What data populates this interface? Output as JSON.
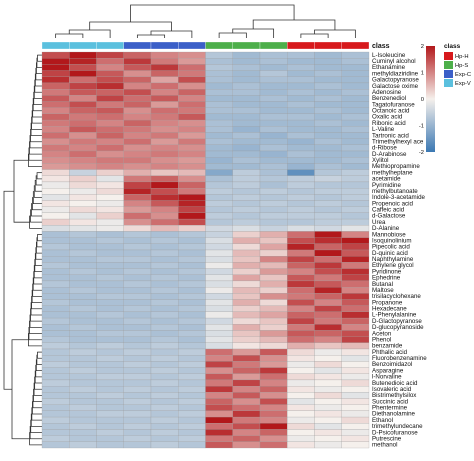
{
  "chart_data": {
    "type": "heatmap",
    "title": "",
    "annotation_title": "class",
    "classes": [
      {
        "name": "Hp-H",
        "color": "#d7191c"
      },
      {
        "name": "Hp-S",
        "color": "#4daf4a"
      },
      {
        "name": "Exp-C",
        "color": "#3b5fc8"
      },
      {
        "name": "Exp-V",
        "color": "#5bc0de"
      }
    ],
    "column_classes": [
      "Exp-V",
      "Exp-V",
      "Exp-V",
      "Exp-C",
      "Exp-C",
      "Exp-C",
      "Hp-S",
      "Hp-S",
      "Hp-S",
      "Hp-H",
      "Hp-H",
      "Hp-H"
    ],
    "color_scale": {
      "min": -2,
      "max": 2,
      "ticks": [
        2,
        1,
        0,
        -1,
        -2
      ],
      "low": "#3b78b3",
      "mid": "#f5f0ec",
      "high": "#b2181b"
    },
    "rows": [
      "L-Isoleucine",
      "Cuminyl alcohol",
      "Ethanamine",
      "methyldiaziridine",
      "Galactopyranose",
      "Galactose oxime",
      "Adenosine",
      "Benzenediol",
      "Tagatofuranose",
      "Octanoic acid",
      "Oxalic acid",
      "Ribonic acid",
      "L-Valine",
      "Tartronic acid",
      "Trimethylhexyl ace",
      "d-Ribose",
      "D-Arabinose",
      "Xylitol",
      "Methiopropamine",
      "methylheptane",
      "acetamide",
      "Pyrimidine",
      "methylbutanoate",
      "Indole-3-acetamide",
      "Propenoic acid",
      "Caffeic acid",
      "d-Galactose",
      "Urea",
      "D-Alanine",
      "Mannobiose",
      "Isoquinolinium",
      "Pipecolic acid",
      "D-quinic acid",
      "Naphthylamine",
      "Ethylene glycol",
      "Pyridinone",
      "Ephedrine",
      "Butanal",
      "Maltose",
      "trisilacyclohexane",
      "Propanone",
      "Hexadecane",
      "L-Phenylalanine",
      "D-Glactopyranose",
      "D-glucopyranoside",
      "Aceton",
      "Phenol",
      "benzamide",
      "Phthalic acid",
      "Fluorobenzenamine",
      "Benzoimidazol",
      "Asparagine",
      "l-Norvaline",
      "Butenedioic acid",
      "Isovaleric acid",
      "Bistrimethylsilox",
      "Succinic acid",
      "Phentermine",
      "Diethanolamine",
      "Ethanol",
      "trimethylundecane",
      "D-Psicofuranose",
      "Putrescine",
      "methanol"
    ],
    "values": [
      [
        1.5,
        2.3,
        1.6,
        1.3,
        1.0,
        0.9,
        -0.7,
        -0.9,
        -0.8,
        -0.8,
        -0.9,
        -0.8
      ],
      [
        2.4,
        1.9,
        1.2,
        1.7,
        1.1,
        0.8,
        -0.8,
        -0.9,
        -0.8,
        -0.9,
        -0.9,
        -0.8
      ],
      [
        2.1,
        1.5,
        1.0,
        1.4,
        1.7,
        1.2,
        -0.7,
        -0.8,
        -0.9,
        -0.8,
        -0.9,
        -0.9
      ],
      [
        1.6,
        2.0,
        1.4,
        0.9,
        1.3,
        1.1,
        -0.8,
        -0.9,
        -0.7,
        -0.9,
        -0.8,
        -0.9
      ],
      [
        1.8,
        1.2,
        1.5,
        1.3,
        0.7,
        1.5,
        -0.8,
        -0.9,
        -0.8,
        -0.8,
        -0.9,
        -0.9
      ],
      [
        1.3,
        1.6,
        1.8,
        1.0,
        1.2,
        0.9,
        -0.9,
        -0.8,
        -0.9,
        -0.9,
        -0.8,
        -0.9
      ],
      [
        1.1,
        1.4,
        1.3,
        1.5,
        1.0,
        1.3,
        -0.8,
        -0.8,
        -0.9,
        -0.8,
        -0.9,
        -0.8
      ],
      [
        1.4,
        1.0,
        1.6,
        1.2,
        1.4,
        1.0,
        -0.9,
        -0.9,
        -0.8,
        -0.9,
        -0.8,
        -0.9
      ],
      [
        1.2,
        1.5,
        1.1,
        1.3,
        0.8,
        1.2,
        -0.8,
        -0.9,
        -0.9,
        -0.8,
        -0.9,
        -0.9
      ],
      [
        1.0,
        1.3,
        1.4,
        0.9,
        1.2,
        1.1,
        -0.8,
        -0.8,
        -0.9,
        -0.9,
        -0.8,
        -0.9
      ],
      [
        1.3,
        1.1,
        1.2,
        1.0,
        1.1,
        1.4,
        -0.9,
        -0.9,
        -0.8,
        -0.8,
        -0.9,
        -0.8
      ],
      [
        1.1,
        1.2,
        1.0,
        1.3,
        1.0,
        0.9,
        -0.8,
        -0.9,
        -0.9,
        -0.9,
        -0.8,
        -0.9
      ],
      [
        1.0,
        1.4,
        1.2,
        1.1,
        0.9,
        1.0,
        -0.8,
        -1.0,
        -0.8,
        -0.9,
        -0.9,
        -0.8
      ],
      [
        1.2,
        0.9,
        1.3,
        1.0,
        1.1,
        0.8,
        -0.9,
        -0.8,
        -1.0,
        -0.8,
        -0.9,
        -0.9
      ],
      [
        0.9,
        1.1,
        1.0,
        1.2,
        0.8,
        1.1,
        -0.8,
        -0.9,
        -0.9,
        -1.0,
        -0.8,
        -0.9
      ],
      [
        1.1,
        1.0,
        1.2,
        0.9,
        1.0,
        0.9,
        -0.9,
        -1.0,
        -0.8,
        -0.9,
        -0.9,
        -0.8
      ],
      [
        1.0,
        1.2,
        0.9,
        1.0,
        1.1,
        1.0,
        -0.9,
        -0.9,
        -1.0,
        -0.8,
        -0.9,
        -0.9
      ],
      [
        0.9,
        1.0,
        1.1,
        1.1,
        0.9,
        0.8,
        -1.0,
        -0.8,
        -0.9,
        -0.9,
        -0.9,
        -0.8
      ],
      [
        0.8,
        0.9,
        1.0,
        0.9,
        1.0,
        0.9,
        -0.9,
        -0.9,
        -0.8,
        -1.0,
        -0.8,
        -0.9
      ],
      [
        0.2,
        -0.5,
        0.3,
        0.6,
        0.4,
        0.5,
        -1.2,
        -0.6,
        -0.8,
        -1.6,
        -0.7,
        -0.6
      ],
      [
        0.1,
        0.3,
        -0.2,
        1.1,
        1.3,
        0.9,
        -0.8,
        -0.6,
        -0.7,
        -0.6,
        -0.5,
        -0.6
      ],
      [
        -0.1,
        0.2,
        0.1,
        1.6,
        2.0,
        1.3,
        -0.7,
        -0.6,
        -0.8,
        -0.6,
        -0.7,
        -0.7
      ],
      [
        0.0,
        -0.1,
        0.2,
        1.9,
        1.5,
        1.1,
        -0.6,
        -0.7,
        -0.6,
        -0.7,
        -0.6,
        -0.6
      ],
      [
        -0.2,
        0.1,
        0.0,
        1.3,
        1.8,
        2.2,
        -0.7,
        -0.6,
        -0.7,
        -0.6,
        -0.7,
        -0.6
      ],
      [
        0.1,
        0.0,
        -0.1,
        1.0,
        1.4,
        1.9,
        -0.6,
        -0.7,
        -0.6,
        -0.7,
        -0.6,
        -0.7
      ],
      [
        -0.1,
        0.2,
        0.1,
        0.8,
        1.0,
        1.6,
        -0.7,
        -0.6,
        -0.7,
        -0.6,
        -0.7,
        -0.6
      ],
      [
        0.0,
        -0.2,
        0.3,
        1.2,
        0.9,
        2.3,
        -0.6,
        -0.7,
        -0.6,
        -0.6,
        -0.6,
        -0.7
      ],
      [
        0.3,
        0.1,
        -0.1,
        0.9,
        1.2,
        1.5,
        -0.7,
        -0.6,
        -0.7,
        -0.7,
        -0.6,
        -0.6
      ],
      [
        -0.3,
        -0.2,
        -0.1,
        0.2,
        0.5,
        0.3,
        -0.4,
        -0.3,
        -0.5,
        -0.3,
        -0.4,
        -0.2
      ],
      [
        -0.8,
        -0.7,
        -0.8,
        -0.7,
        -0.8,
        -0.7,
        -0.5,
        0.3,
        0.6,
        1.2,
        2.1,
        1.0
      ],
      [
        -0.8,
        -0.8,
        -0.7,
        -0.8,
        -0.7,
        -0.8,
        -0.3,
        0.6,
        0.4,
        1.5,
        1.8,
        2.4
      ],
      [
        -0.7,
        -0.8,
        -0.8,
        -0.7,
        -0.8,
        -0.7,
        -0.4,
        0.2,
        0.7,
        1.9,
        1.3,
        1.6
      ],
      [
        -0.8,
        -0.7,
        -0.8,
        -0.8,
        -0.7,
        -0.8,
        -0.2,
        0.5,
        0.3,
        1.1,
        2.2,
        1.4
      ],
      [
        -0.8,
        -0.8,
        -0.7,
        -0.7,
        -0.8,
        -0.7,
        -0.3,
        0.4,
        1.0,
        1.6,
        1.2,
        1.9
      ],
      [
        -0.7,
        -0.8,
        -0.8,
        -0.8,
        -0.7,
        -0.8,
        -0.1,
        0.6,
        0.5,
        1.3,
        1.7,
        1.1
      ],
      [
        -0.8,
        -0.7,
        -0.8,
        -0.7,
        -0.8,
        -0.7,
        -0.4,
        0.3,
        0.8,
        1.0,
        1.5,
        1.8
      ],
      [
        -0.8,
        -0.8,
        -0.7,
        -0.8,
        -0.7,
        -0.8,
        -0.2,
        0.7,
        0.4,
        1.4,
        1.1,
        1.6
      ],
      [
        -0.7,
        -0.8,
        -0.8,
        -0.7,
        -0.8,
        -0.7,
        -0.3,
        0.2,
        0.6,
        1.7,
        1.4,
        1.2
      ],
      [
        -0.8,
        -0.7,
        -0.8,
        -0.8,
        -0.7,
        -0.8,
        -0.1,
        0.5,
        0.3,
        1.2,
        1.9,
        1.0
      ],
      [
        -0.8,
        -0.8,
        -0.7,
        -0.7,
        -0.8,
        -0.7,
        -0.4,
        0.4,
        0.9,
        1.1,
        1.3,
        1.7
      ],
      [
        -0.7,
        -0.8,
        -0.8,
        -0.8,
        -0.7,
        -0.8,
        -0.2,
        0.6,
        0.2,
        1.5,
        1.0,
        1.4
      ],
      [
        -0.8,
        -0.7,
        -0.8,
        -0.7,
        -0.8,
        -0.7,
        -0.3,
        0.3,
        0.5,
        1.0,
        1.6,
        1.2
      ],
      [
        -0.8,
        -0.8,
        -0.7,
        -0.8,
        -0.7,
        -0.8,
        -0.1,
        0.5,
        0.7,
        1.3,
        1.2,
        1.8
      ],
      [
        -0.7,
        -0.8,
        -0.8,
        -0.7,
        -0.8,
        -0.7,
        -0.4,
        0.2,
        0.4,
        1.6,
        1.1,
        1.3
      ],
      [
        -0.8,
        -0.7,
        -0.8,
        -0.8,
        -0.7,
        -0.8,
        -0.2,
        0.6,
        0.3,
        1.1,
        1.8,
        1.0
      ],
      [
        -0.8,
        -0.8,
        -0.7,
        -0.7,
        -0.8,
        -0.7,
        -0.3,
        0.4,
        0.8,
        1.4,
        1.3,
        1.5
      ],
      [
        -0.7,
        -0.8,
        -0.8,
        -0.8,
        -0.7,
        -0.8,
        -0.2,
        0.3,
        0.5,
        1.2,
        1.0,
        1.6
      ],
      [
        -0.6,
        -0.7,
        -0.6,
        -0.7,
        -0.6,
        -0.7,
        -0.3,
        0.1,
        0.2,
        0.6,
        0.4,
        0.5
      ],
      [
        -0.7,
        -0.6,
        -0.7,
        -0.6,
        -0.7,
        -0.6,
        1.2,
        0.8,
        1.4,
        0.2,
        -0.1,
        0.1
      ],
      [
        -0.7,
        -0.7,
        -0.6,
        -0.7,
        -0.6,
        -0.7,
        1.0,
        1.5,
        0.9,
        0.1,
        0.0,
        -0.2
      ],
      [
        -0.6,
        -0.7,
        -0.7,
        -0.6,
        -0.7,
        -0.6,
        1.6,
        1.1,
        0.8,
        -0.1,
        0.2,
        0.0
      ],
      [
        -0.7,
        -0.6,
        -0.7,
        -0.7,
        -0.6,
        -0.7,
        0.9,
        1.3,
        1.7,
        0.0,
        -0.2,
        0.1
      ],
      [
        -0.7,
        -0.7,
        -0.6,
        -0.6,
        -0.7,
        -0.6,
        1.4,
        0.8,
        1.2,
        0.2,
        0.1,
        -0.1
      ],
      [
        -0.6,
        -0.7,
        -0.7,
        -0.7,
        -0.6,
        -0.7,
        1.1,
        1.6,
        1.0,
        -0.1,
        0.0,
        0.2
      ],
      [
        -0.7,
        -0.6,
        -0.7,
        -0.6,
        -0.7,
        -0.6,
        1.7,
        1.0,
        1.3,
        0.1,
        -0.1,
        0.0
      ],
      [
        -0.7,
        -0.7,
        -0.6,
        -0.7,
        -0.6,
        -0.7,
        1.0,
        1.4,
        0.9,
        0.0,
        0.2,
        -0.2
      ],
      [
        -0.6,
        -0.7,
        -0.7,
        -0.6,
        -0.7,
        -0.6,
        1.3,
        0.9,
        1.5,
        -0.2,
        0.0,
        0.1
      ],
      [
        -0.7,
        -0.6,
        -0.7,
        -0.7,
        -0.6,
        -0.7,
        1.5,
        1.2,
        1.0,
        0.1,
        -0.1,
        0.0
      ],
      [
        -0.7,
        -0.7,
        -0.6,
        -0.6,
        -0.7,
        -0.6,
        0.9,
        1.7,
        1.2,
        0.0,
        0.1,
        -0.1
      ],
      [
        -0.6,
        -0.7,
        -0.7,
        -0.7,
        -0.6,
        -0.7,
        2.3,
        1.1,
        1.0,
        -0.1,
        0.0,
        0.2
      ],
      [
        -0.7,
        -0.6,
        -0.7,
        -0.6,
        -0.7,
        -0.6,
        1.2,
        1.5,
        2.0,
        0.2,
        -0.2,
        0.0
      ],
      [
        -0.7,
        -0.7,
        -0.6,
        -0.7,
        -0.6,
        -0.7,
        1.8,
        1.0,
        1.3,
        0.0,
        0.1,
        -0.1
      ],
      [
        -0.6,
        -0.7,
        -0.7,
        -0.6,
        -0.7,
        -0.6,
        1.1,
        1.3,
        0.9,
        -0.1,
        0.0,
        0.1
      ],
      [
        -0.7,
        -0.6,
        -0.7,
        -0.7,
        -0.6,
        -0.7,
        1.4,
        0.9,
        1.2,
        0.1,
        -0.1,
        0.0
      ]
    ]
  }
}
